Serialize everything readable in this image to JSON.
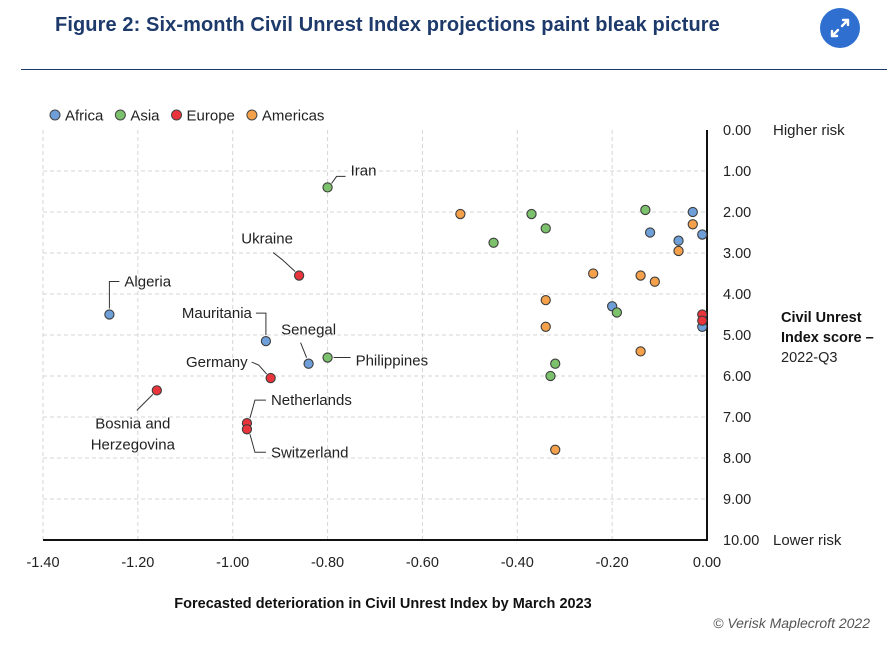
{
  "header": {
    "title": "Figure 2: Six-month Civil Unrest Index projections paint bleak picture",
    "expand_icon": "expand-icon"
  },
  "credit": "© Verisk Maplecroft 2022",
  "colors": {
    "title": "#1d3a6b",
    "accent": "#2e6fd0",
    "Africa": "#6f9fd8",
    "Asia": "#7cc16b",
    "Europe": "#e8343a",
    "Americas": "#f5a04a"
  },
  "chart_data": {
    "type": "scatter",
    "xlabel": "Forecasted deterioration in Civil Unrest Index by March 2023",
    "ylabel": "Civil Unrest Index score – 2022-Q3",
    "ylabel_lines": [
      "Civil Unrest",
      "Index score –",
      "2022-Q3"
    ],
    "xlim": [
      -1.4,
      0.0
    ],
    "ylim": [
      0.0,
      10.0
    ],
    "y_inverted": true,
    "grid": true,
    "legend_position": "top-left",
    "x_ticks": [
      "-1.40",
      "-1.20",
      "-1.00",
      "-0.80",
      "-0.60",
      "-0.40",
      "-0.20",
      "0.00"
    ],
    "x_tick_values": [
      -1.4,
      -1.2,
      -1.0,
      -0.8,
      -0.6,
      -0.4,
      -0.2,
      0.0
    ],
    "y_ticks": [
      "0.00",
      "1.00",
      "2.00",
      "3.00",
      "4.00",
      "5.00",
      "6.00",
      "7.00",
      "8.00",
      "9.00",
      "10.00"
    ],
    "y_tick_values": [
      0,
      1,
      2,
      3,
      4,
      5,
      6,
      7,
      8,
      9,
      10
    ],
    "y_end_labels": {
      "top": "Higher risk",
      "bottom": "Lower risk"
    },
    "series": [
      {
        "name": "Africa",
        "points": [
          {
            "x": -1.26,
            "y": 4.5,
            "label": "Algeria"
          },
          {
            "x": -0.93,
            "y": 5.15,
            "label": "Mauritania"
          },
          {
            "x": -0.84,
            "y": 5.7,
            "label": "Senegal"
          },
          {
            "x": -0.2,
            "y": 4.3
          },
          {
            "x": -0.12,
            "y": 2.5
          },
          {
            "x": -0.06,
            "y": 2.7
          },
          {
            "x": -0.03,
            "y": 2.0
          },
          {
            "x": -0.01,
            "y": 2.55
          },
          {
            "x": -0.01,
            "y": 4.8
          }
        ]
      },
      {
        "name": "Asia",
        "points": [
          {
            "x": -0.8,
            "y": 1.4,
            "label": "Iran"
          },
          {
            "x": -0.8,
            "y": 5.55,
            "label": "Philippines"
          },
          {
            "x": -0.45,
            "y": 2.75
          },
          {
            "x": -0.37,
            "y": 2.05
          },
          {
            "x": -0.34,
            "y": 2.4
          },
          {
            "x": -0.32,
            "y": 5.7
          },
          {
            "x": -0.33,
            "y": 6.0
          },
          {
            "x": -0.19,
            "y": 4.45
          },
          {
            "x": -0.13,
            "y": 1.95
          }
        ]
      },
      {
        "name": "Europe",
        "points": [
          {
            "x": -1.16,
            "y": 6.35,
            "label": "Bosnia and Herzegovina"
          },
          {
            "x": -0.97,
            "y": 7.15,
            "label": "Netherlands"
          },
          {
            "x": -0.97,
            "y": 7.3,
            "label": "Switzerland"
          },
          {
            "x": -0.92,
            "y": 6.05,
            "label": "Germany"
          },
          {
            "x": -0.86,
            "y": 3.55,
            "label": "Ukraine"
          },
          {
            "x": -0.01,
            "y": 4.5
          },
          {
            "x": -0.01,
            "y": 4.65
          }
        ]
      },
      {
        "name": "Americas",
        "points": [
          {
            "x": -0.52,
            "y": 2.05
          },
          {
            "x": -0.34,
            "y": 4.15
          },
          {
            "x": -0.34,
            "y": 4.8
          },
          {
            "x": -0.32,
            "y": 7.8
          },
          {
            "x": -0.24,
            "y": 3.5
          },
          {
            "x": -0.14,
            "y": 3.55
          },
          {
            "x": -0.14,
            "y": 5.4
          },
          {
            "x": -0.11,
            "y": 3.7
          },
          {
            "x": -0.06,
            "y": 2.95
          },
          {
            "x": -0.03,
            "y": 2.3
          }
        ]
      }
    ]
  }
}
